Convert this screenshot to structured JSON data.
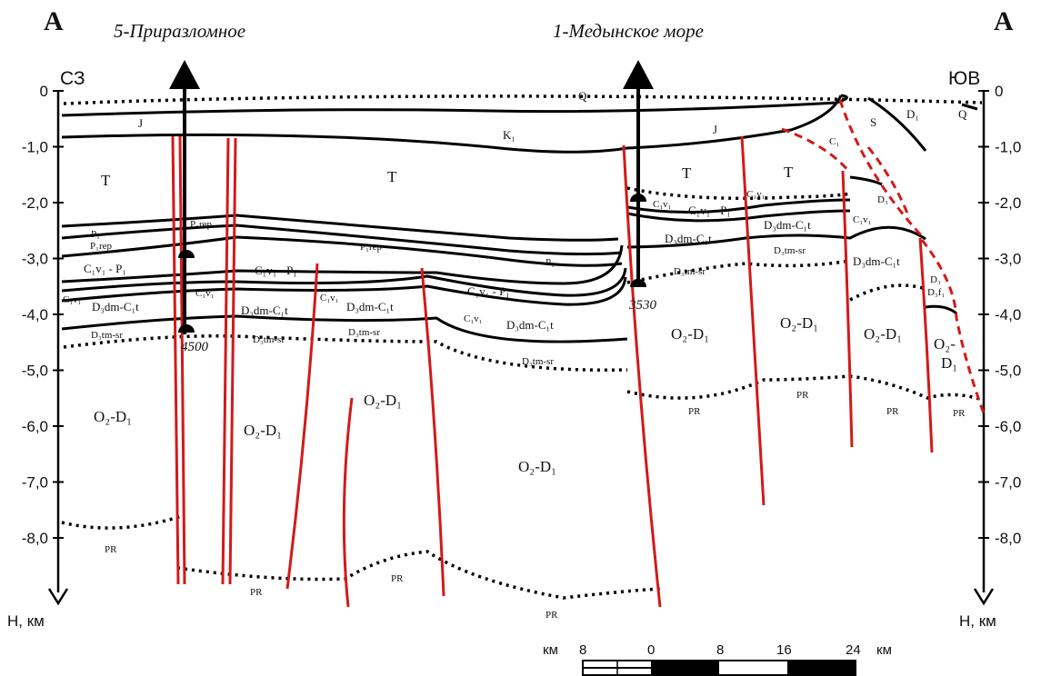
{
  "corners": {
    "left": "А",
    "right": "А"
  },
  "wells": [
    {
      "name": "5-Приразломное",
      "depth": "4500"
    },
    {
      "name": "1-Медынское море",
      "depth": "3530"
    }
  ],
  "directions": {
    "left": "СЗ",
    "right": "ЮВ"
  },
  "axis": {
    "ticks": [
      "0",
      "-1,0",
      "-2,0",
      "-3,0",
      "-4,0",
      "-5,0",
      "-6,0",
      "-7,0",
      "-8,0"
    ],
    "unit_label": "Н, км"
  },
  "strata": {
    "Q": "Q",
    "J": "J",
    "K1": "K₁",
    "T": "T",
    "S": "S",
    "D1": "D₁",
    "C1": "C₁",
    "Cv": "C₁v₁",
    "Cv_P": "C₁v₁ - P₁",
    "P1": "P₁",
    "P1_rep": "P₁rep",
    "Ddm": "D₃dm-C₁t",
    "Dtm": "D₃tm-sr",
    "O2D1": "O₂-D₁",
    "PR": "PR",
    "Dfr": "D₃f₁",
    "Df": "D₃",
    "O2_dash": "O₂-",
    "D1_single": "D₁"
  },
  "scale": {
    "unit": "км",
    "ticks": [
      "8",
      "0",
      "8",
      "16",
      "24"
    ],
    "units_right": "км"
  }
}
